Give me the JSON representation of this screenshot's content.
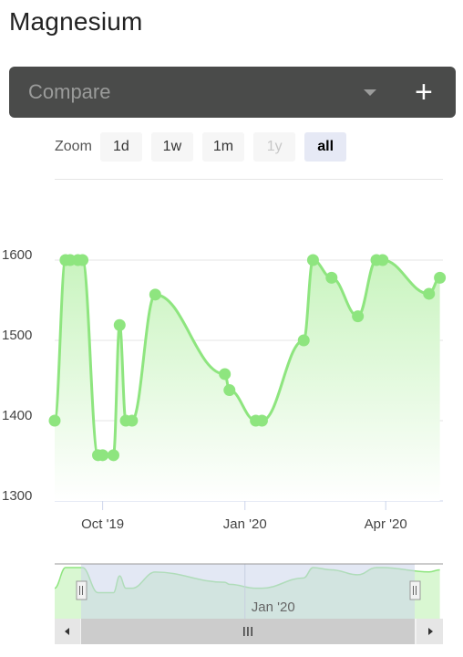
{
  "page": {
    "title": "Magnesium"
  },
  "compare": {
    "placeholder": "Compare",
    "dropdown_icon": "chevron-down-icon",
    "add_icon": "plus-icon"
  },
  "zoom": {
    "label": "Zoom",
    "buttons": [
      {
        "label": "1d",
        "state": "enabled"
      },
      {
        "label": "1w",
        "state": "enabled"
      },
      {
        "label": "1m",
        "state": "enabled"
      },
      {
        "label": "1y",
        "state": "disabled"
      },
      {
        "label": "all",
        "state": "active"
      }
    ]
  },
  "navigator": {
    "label": "Jan '20",
    "scrollbar_grip": "III"
  },
  "colors": {
    "line": "#8ee57f",
    "area_top": "#c9f4bf",
    "area_bottom": "#ffffff",
    "navigator_mask": "#ccd6eb",
    "scrollbar": "#cccccc"
  },
  "chart_data": {
    "type": "area",
    "title": "",
    "xlabel": "",
    "ylabel": "",
    "x_type": "date",
    "ylim": [
      1300,
      1600
    ],
    "y_ticks": [
      1300,
      1400,
      1500,
      1600
    ],
    "y_tick_labels": [
      "1300",
      "1400",
      "1500",
      "1600"
    ],
    "x_ticks": [
      "2019-10-01",
      "2020-01-01",
      "2020-04-01"
    ],
    "x_tick_labels": [
      "Oct '19",
      "Jan '20",
      "Apr '20"
    ],
    "xlim": [
      "2019-08-31",
      "2020-05-08"
    ],
    "grid": "horizontal",
    "legend": "none",
    "series": [
      {
        "points": [
          [
            "2019-08-31",
            1400
          ],
          [
            "2019-09-07",
            1600
          ],
          [
            "2019-09-10",
            1600
          ],
          [
            "2019-09-15",
            1600
          ],
          [
            "2019-09-18",
            1600
          ],
          [
            "2019-09-28",
            1357
          ],
          [
            "2019-10-01",
            1357
          ],
          [
            "2019-10-08",
            1357
          ],
          [
            "2019-10-12",
            1519
          ],
          [
            "2019-10-16",
            1400
          ],
          [
            "2019-10-20",
            1400
          ],
          [
            "2019-11-04",
            1557
          ],
          [
            "2019-12-19",
            1458
          ],
          [
            "2019-12-22",
            1438
          ],
          [
            "2020-01-08",
            1400
          ],
          [
            "2020-01-12",
            1400
          ],
          [
            "2020-02-08",
            1500
          ],
          [
            "2020-02-14",
            1600
          ],
          [
            "2020-02-26",
            1578
          ],
          [
            "2020-03-14",
            1530
          ],
          [
            "2020-03-26",
            1600
          ],
          [
            "2020-03-30",
            1600
          ],
          [
            "2020-04-29",
            1558
          ],
          [
            "2020-05-06",
            1578
          ]
        ]
      }
    ]
  }
}
